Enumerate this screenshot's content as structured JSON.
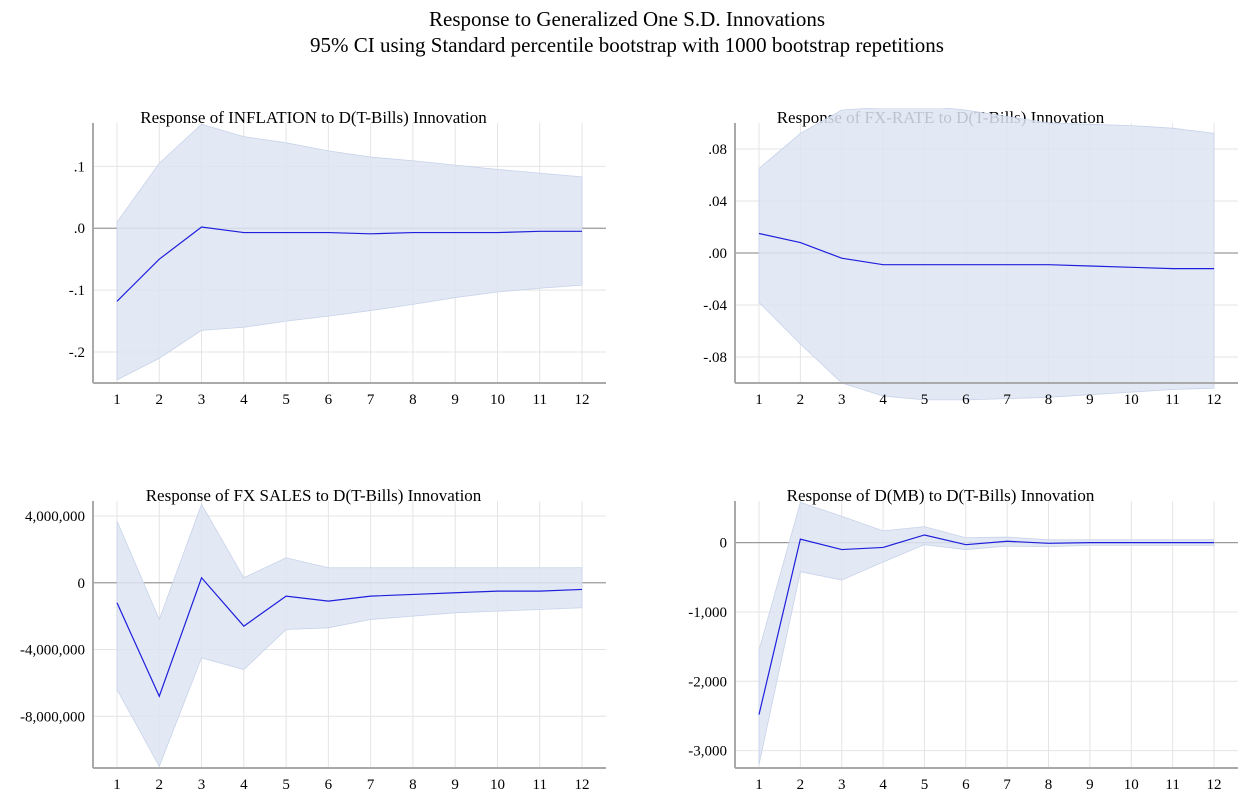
{
  "header": {
    "title": "Response to Generalized One S.D. Innovations",
    "subtitle": "95% CI using Standard percentile bootstrap with 1000 bootstrap repetitions"
  },
  "colors": {
    "line": "#1f1fdc",
    "band": "#dde4f2",
    "grid": "#e4e4e4",
    "zero": "#9a9a9a",
    "axis": "#a9a9a9"
  },
  "chart_data": [
    {
      "type": "line",
      "title": "Response of INFLATION to D(T-Bills) Innovation",
      "x": [
        1,
        2,
        3,
        4,
        5,
        6,
        7,
        8,
        9,
        10,
        11,
        12
      ],
      "ylim": [
        -0.25,
        0.17
      ],
      "yticks": [
        0.1,
        0.0,
        -0.1,
        -0.2
      ],
      "ytick_labels": [
        ".1",
        ".0",
        "-.1",
        "-.2"
      ],
      "series": [
        {
          "values": [
            -0.118,
            -0.05,
            0.002,
            -0.007,
            -0.007,
            -0.007,
            -0.009,
            -0.007,
            -0.007,
            -0.007,
            -0.005,
            -0.005
          ]
        }
      ],
      "ci_upper": [
        0.01,
        0.105,
        0.168,
        0.148,
        0.138,
        0.125,
        0.115,
        0.109,
        0.102,
        0.095,
        0.089,
        0.083
      ],
      "ci_lower": [
        -0.245,
        -0.21,
        -0.165,
        -0.16,
        -0.15,
        -0.142,
        -0.133,
        -0.123,
        -0.112,
        -0.103,
        -0.097,
        -0.092
      ]
    },
    {
      "type": "line",
      "title": "Response of FX-RATE to D(T-Bills) Innovation",
      "x": [
        1,
        2,
        3,
        4,
        5,
        6,
        7,
        8,
        9,
        10,
        11,
        12
      ],
      "ylim": [
        -0.1,
        0.1
      ],
      "yticks": [
        0.08,
        0.04,
        0.0,
        -0.04,
        -0.08
      ],
      "ytick_labels": [
        ".08",
        ".04",
        ".00",
        "-.04",
        "-.08"
      ],
      "series": [
        {
          "values": [
            0.015,
            0.008,
            -0.004,
            -0.009,
            -0.009,
            -0.009,
            -0.009,
            -0.009,
            -0.01,
            -0.011,
            -0.012,
            -0.012
          ]
        }
      ],
      "ci_upper": [
        0.065,
        0.092,
        0.11,
        0.112,
        0.113,
        0.11,
        0.105,
        0.1,
        0.099,
        0.098,
        0.096,
        0.092
      ],
      "ci_lower": [
        -0.038,
        -0.07,
        -0.1,
        -0.11,
        -0.113,
        -0.113,
        -0.112,
        -0.111,
        -0.109,
        -0.107,
        -0.105,
        -0.104
      ]
    },
    {
      "type": "line",
      "title": "Response of FX SALES to D(T-Bills) Innovation",
      "x": [
        1,
        2,
        3,
        4,
        5,
        6,
        7,
        8,
        9,
        10,
        11,
        12
      ],
      "ylim": [
        -11100000,
        4900000
      ],
      "yticks": [
        4000000,
        0,
        -4000000,
        -8000000
      ],
      "ytick_labels": [
        "4,000,000",
        "0",
        "-4,000,000",
        "-8,000,000"
      ],
      "series": [
        {
          "values": [
            -1200000,
            -6800000,
            300000,
            -2600000,
            -800000,
            -1100000,
            -800000,
            -700000,
            -600000,
            -500000,
            -500000,
            -400000
          ]
        }
      ],
      "ci_upper": [
        3700000,
        -2200000,
        4700000,
        300000,
        1500000,
        900000,
        900000,
        900000,
        900000,
        900000,
        900000,
        900000
      ],
      "ci_lower": [
        -6400000,
        -11000000,
        -4500000,
        -5200000,
        -2800000,
        -2700000,
        -2200000,
        -2000000,
        -1800000,
        -1700000,
        -1600000,
        -1500000
      ]
    },
    {
      "type": "line",
      "title": "Response of D(MB) to D(T-Bills) Innovation",
      "x": [
        1,
        2,
        3,
        4,
        5,
        6,
        7,
        8,
        9,
        10,
        11,
        12
      ],
      "ylim": [
        -3250,
        600
      ],
      "yticks": [
        0,
        -1000,
        -2000,
        -3000
      ],
      "ytick_labels": [
        "0",
        "-1,000",
        "-2,000",
        "-3,000"
      ],
      "series": [
        {
          "values": [
            -2480,
            50,
            -100,
            -70,
            110,
            -30,
            20,
            -10,
            0,
            0,
            0,
            0
          ]
        }
      ],
      "ci_upper": [
        -1550,
        580,
        380,
        170,
        230,
        70,
        80,
        40,
        40,
        40,
        40,
        40
      ],
      "ci_lower": [
        -3200,
        -420,
        -540,
        -280,
        -30,
        -100,
        -50,
        -60,
        -40,
        -40,
        -40,
        -40
      ]
    }
  ]
}
